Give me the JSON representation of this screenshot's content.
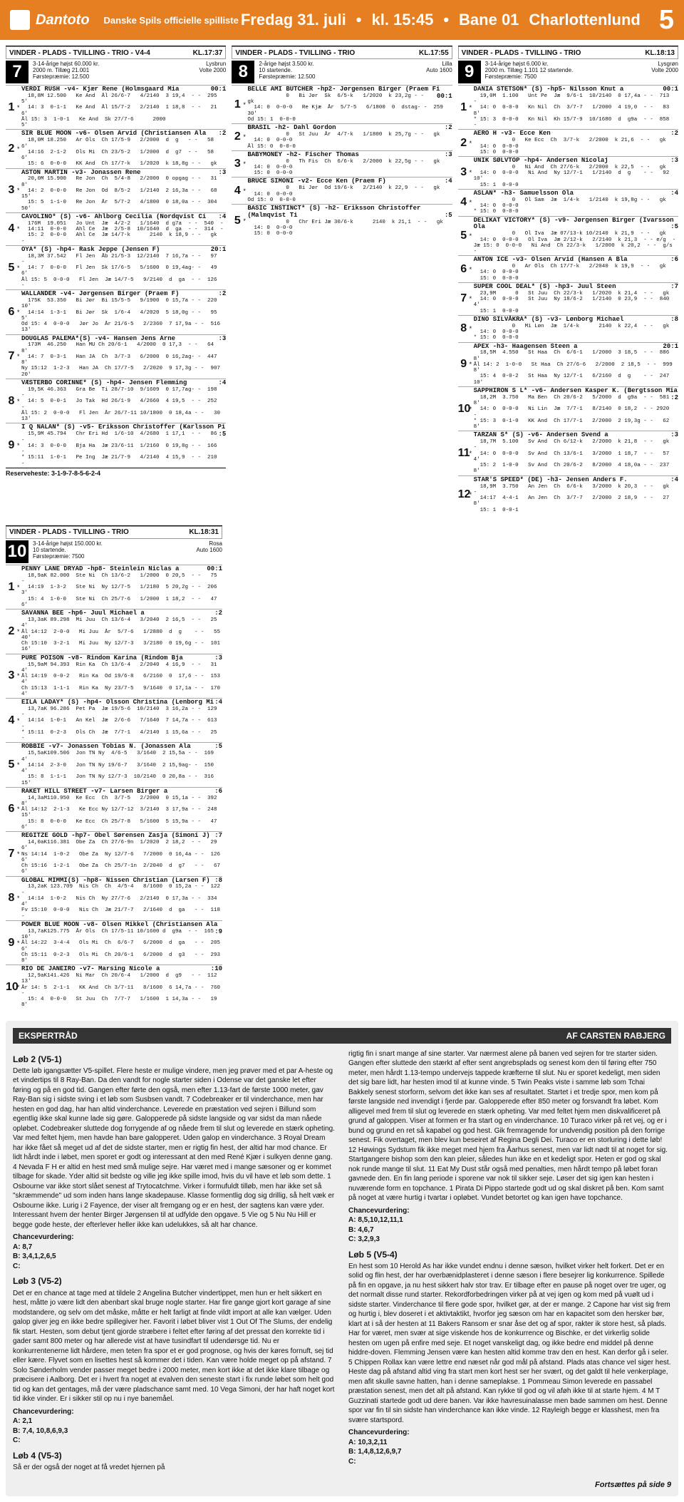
{
  "header": {
    "brand": "Dantoto",
    "subtitle": "Danske Spils officielle spilliste",
    "date": "Fredag 31. juli",
    "time": "kl. 15:45",
    "track": "Bane 01",
    "venue": "Charlottenlund",
    "page": "5"
  },
  "races": [
    {
      "num": "7",
      "title": "VINDER - PLADS - TVILLING - TRIO - V4-4",
      "kl": "KL.17:37",
      "meta": "3-14-årige højst 60.000 kr.\n2000 m. Tillæg 21.001\nFørstepræmie: 12.500",
      "right": "Lysbrun\nVolte 2000",
      "horses": [
        {
          "n": "1",
          "name": "VERDI RUSH -v4- Kjær Rene (Holmsgaard Mia",
          "odds": "00:1",
          "lines": "  18,8M 12.500   Ke And  Ål 26/6-7   4/2140  3 19,4  - -  295  5'\n  14: 3  0-1-1   Ke And  Ål 15/7-2   2/2140  1 18,8  - -   21  6'\nÅl 15: 3  1-0-1   Ke And  Sk 27/7-6      2000                    5'"
        },
        {
          "n": "2",
          "name": "SIR BLUE MOON -v6- Olsen Arvid (Christiansen Ala",
          "odds": ":2",
          "lines": "  18,0M 18.250   Ar Ols  Ch 17/5-9   2/2000  d  g   - -   58  6'\n  14:16  2-1-2   Ols Mi  Ch 23/5-2   1/2000  d  g7  - -   58  6'\n  15: 6  0-0-0   KK And  Ch 17/7-k   1/2020  k 18,8g - -   gk"
        },
        {
          "n": "3",
          "name": "ASTON MARTIN -v3- Jonassen Rene",
          "odds": ":3",
          "lines": "  20,0M 15.900   Re Jon  Ch  5/4-8   2/2000  0 opgag - -   31  8'\n  14: 2  0-0-0   Re Jon  Od  8/5-2   1/2140  2 16,3a - -   68 15'\n  15: 5  1-1-0   Re Jon  År  5/7-2   4/1800  0 18,0a - -  304 50'"
        },
        {
          "n": "4",
          "name": "CAVOLINO* (S) -v6- Ahlborg Cecilia (Nordqvist Ci",
          "odds": ":4",
          "lines": "  176M  19.051   Jo Unt  Jæ  4/2-2   1/1640  d g7a  - -  540  -\n  14:11  0-0-0   Ahl Ce  Jæ  2/5-8  10/1640  d  ga  - -  314  -\n  15: 2  0-0-0   Ahl Ce  Jæ 14/7-k      2140  k 18,9 - -   gk  -"
        },
        {
          "n": "5",
          "name": "OYA* (S) -hp4- Rask Jeppe (Jensen F)",
          "odds": "20:1",
          "lines": "  18,3M 37.542   Fl Jen  Åb 21/5-3  12/2140  7 16,7a - -   97  -\n  14: 7  0-0-0   Fl Jen  Sk 17/6-5   5/1600  0 19,4ag- -   49  6'\nÅl 15: 5  0-0-0   Fl Jen  Jæ 14/7-5   9/2140  d  ga  - -  126  -"
        },
        {
          "n": "6",
          "name": "WALLANDER -v4- Jørgensen Birger (Praem F)",
          "odds": ":2",
          "lines": "  175K  53.350   Bi Jør  Bi 15/5-5   9/1900  0 15,7a - -  220 10'\n  14:14  1-3-1   Bi Jør  Sk  1/6-4   4/2020  5 18,0g - -   95  5'\nOd 15: 4  0-0-0   Jør Jo  År 21/6-5   2/2360  7 17,9a - -  516 13'"
        },
        {
          "n": "7",
          "name": "DOUGLAS PALEMA*(S) -v4- Hansen Jens Arne",
          "odds": ":3",
          "lines": "  173M  46.250   Han MU Ch 20/6-1   4/2000  0 17,3  - -   64  8'\n  14: 7  0-3-1   Han JA  Ch  3/7-3   6/2000  0 16,2ag- -  447  8'\nNy 15:12  1-2-3   Han JA  Ch 17/7-5   2/2020  9 17,3g - -  907 20'"
        },
        {
          "n": "8",
          "name": "VÆSTERBO CORINNE* (S) -hp4- Jensen Flemming",
          "odds": ":4",
          "lines": "  19,5K 46.363   Gra Be  Ti 28/7-10  9/1609  0 17,7ag- -  198  -\n  14: 5  0-0-1   Jo Tak  Hd 26/1-9   4/2660  4 19,5  - -  252  -\nÅl 15: 2  0-0-0   Fl Jen  År 26/7-11 10/1800  0 18,4a - -   30 13'"
        },
        {
          "n": "9",
          "name": "I Q NALAN* (S) -v5- Eriksson Christoffer (Karlsson Pi",
          "odds": ":5",
          "lines": "  15,9M 45.794   Chr Eri Hd  1/6-10  4/2680  1 17,1  - -   86  -\n  14: 3  0-0-0   Bja Ha  Jæ 23/6-11  1/2160  0 19,8g - -  166  -\n* 15:11  1-0-1   Pe Ing  Jæ 21/7-9   4/2140  4 15,9  - -  210  -"
        }
      ],
      "reserve": "Reserveheste: 3-1-9-7-8-5-6-2-4"
    },
    {
      "num": "8",
      "title": "VINDER - PLADS - TVILLING - TRIO",
      "kl": "KL.17:55",
      "meta": "2-årige højst 3.500 kr.\n10 startende.\nFørstepræmie: 12.500",
      "right": "Lilla\nAuto 1600",
      "horses": [
        {
          "n": "1",
          "name": "BELLE AMI BUTCHER -hp2- Jørgensen Birger (Praem Fi",
          "odds": "00:1",
          "lines": "            0   Bi Jør  Sk  6/5-k   1/2020  k 23,2g - -   gk\n  14: 0  0-0-0   Re Kjæ  År  5/7-5   6/1800  0  dstag- -  259 30'\nOd 15: 1  0-0-0"
        },
        {
          "n": "2",
          "name": "BRASIL -h2- Dahl Gordon",
          "odds": ":2",
          "lines": "            0   St Juu  År  4/7-k   1/1800  k 25,7g - -   gk\n  14: 0  0-0-0\nÅl 15: 0  0-0-0"
        },
        {
          "n": "3",
          "name": "BABYMONEY -h2- Fischer Thomas",
          "odds": ":3",
          "lines": "            0   Th Fis  Ch  6/6-k   2/2000  k 22,5g - -   gk\n  14: 0  0-0-0\n  15: 0  0-0-0"
        },
        {
          "n": "4",
          "name": "BRUCE SIMONI -v2- Ecce Ken (Praem F)",
          "odds": ":4",
          "lines": "            0   Bi Jør  Od 19/6-k   2/2140  k 22,9  - -   gk\n  14: 0  0-0-0\nOd 15: 0  0-0-0"
        },
        {
          "n": "5",
          "name": "BASIC INSTINCT* (S) -h2- Eriksson Christoffer (Malmqvist Ti",
          "odds": ":5",
          "lines": "            0   Chr Eri Jæ 30/6-k      2140  k 21,1  - -   gk\n  14: 0  0-0-0\n  15: 0  0-0-0"
        }
      ]
    },
    {
      "num": "9",
      "title": "VINDER - PLADS - TVILLING - TRIO",
      "kl": "KL.18:13",
      "meta": "3-14-årige højst 6.000 kr.\n2000 m. Tillæg 1.101 12 startende.\nFørstepræmie: 7500",
      "right": "Lysgrøn\nVolte 2000",
      "horses": [
        {
          "n": "1",
          "name": "DANIA STETSON* (S) -hp5- Nilsson Knut a",
          "odds": "00:1",
          "lines": "  19,0M  1.100   Unt Pe  Jæ  9/6-1  10/2140  0 17,4a - -  713  -\n  14: 0  0-0-0   Kn Nil  Ch  3/7-7   1/2000  4 19,0  - -   83  8'\n* 15: 3  0-0-0   Kn Nil  Kh 15/7-9  10/1680  d  g9a  - -  858  -"
        },
        {
          "n": "2",
          "name": "AERO H -v3- Ecce Ken",
          "odds": ":2",
          "lines": "            0   Ke Ecc  Ch  3/7-k   2/2000  k 21,6  - -   gk\n  14: 0  0-0-0\n  15: 0  0-0-0"
        },
        {
          "n": "3",
          "name": "UNIK SØLVTOP -hp4- Andersen Nicolaj",
          "odds": ":3",
          "lines": "            0   Ni And  Ch 27/6-k   2/2000  k 22,5  - -   gk\n  14: 0  0-0-0   Ni And  Ny 12/7-1   1/2140  d  g    - -   92 10'\n  15: 1  0-0-0"
        },
        {
          "n": "4",
          "name": "ASLAN* -h3- Samuelsson Ola",
          "odds": ":4",
          "lines": "            0   Ol Sam  Jæ  1/4-k   1/2140  k 19,8g - -   gk\n  14: 0  0-0-0\n* 15: 0  0-0-0"
        },
        {
          "n": "5",
          "name": "DELIKAT VICTORY* (S) -v9- Jørgensen Birger (Ivarsson Ola",
          "odds": ":5",
          "lines": "            0   Ol Iva  Jæ 07/13-k 10/2140  k 21,9  - -   gk\n  14: 0  0-0-0   Ol Iva  Jæ 2/12-k   2/2140  k 21,3  - - e/g  -\nJæ 15: 0  0-0-0   Ni And  Ch 22/3-k   1/2000  k 20,2  - -  g/s  -"
        },
        {
          "n": "6",
          "name": "ANTON ICE -v3- Olsen Arvid (Hansen A Bla",
          "odds": ":6",
          "lines": "            0   Ar Ols  Ch 17/7-k   2/2040  k 19,9  - -   gk\n  14: 0  0-0-0\n  15: 0  0-0-0"
        },
        {
          "n": "7",
          "name": "SUPER COOL DEAL* (S) -hp3- Juul Steen",
          "odds": ":7",
          "lines": "  23,9M      0   St Juu  Ch 22/3-k   1/2020  k 21,4  - -   gk\n  14: 0  0-0-0   St Juu  Ny 18/6-2   1/2140  0 23,9  - -  840  4'\n  15: 1  0-0-0"
        },
        {
          "n": "8",
          "name": "DINO SILVÅKRA* (S) -v3- Lønborg Michael",
          "odds": ":8",
          "lines": "            0   Mi Løn  Jæ  1/4-k      2140  k 22,4  - -   gk\n  14: 0  0-0-0\n* 15: 0  0-0-0"
        },
        {
          "n": "9",
          "name": "APEX -h3- Haagensen Steen a",
          "odds": "20:1",
          "lines": "  18,5M  4.550   St Haa  Ch  6/6-1   1/2000  3 18,5  - -  886  8'\nÅl 14: 2  1-0-0   St Haa  Ch 27/6-6   2/2000  2 18,5  - -  999  8'\n  15: 4  0-0-2   St Haa  Ny 12/7-1   6/2160  d  g    - -  247 10'"
        },
        {
          "n": "10",
          "name": "SAPPHIRON S L* -v6- Andersen Kasper K. (Bergtsson Mia",
          "odds": ":2",
          "lines": "  18,2M  3.750   Ma Ben  Ch 20/6-2   5/2000  d  g9a  - -  581  8'\n  14: 0  0-0-0   Ni Lin  Jæ  7/7-1   8/2140  0 18,2  - - 2920  -\n* 15: 3  0-1-0   KK And  Ch 17/7-1   2/2000  2 19,3g - -   62  8'"
        },
        {
          "n": "11",
          "name": "TARZAN S* (S) -v6- Andersen Svend a",
          "odds": ":3",
          "lines": "  18,7M  5.100   Sv And  Ch 6/12-k   2/2000  k 21,8  - -   gk  -\n  14: 0  0-0-0   Sv And  Ch 13/6-1   3/2000  1 18,7  - -   57  4'\n  15: 2  1-0-0   Sv And  Ch 20/6-2   8/2000  4 18,0a - -  237  8'"
        },
        {
          "n": "12",
          "name": "STAR'S SPEED* (DE) -h3- Jensen Anders F.",
          "odds": ":4",
          "lines": "  18,9M  3.750   An Jen  Ch  6/6-k   3/2000  k 20,3  - -   gk  -\n  14:17  4-4-1   An Jen  Ch  3/7-7   2/2000  2 18,9  - -   27  8'\n  15: 1  0-0-1"
        }
      ]
    }
  ],
  "race10": {
    "num": "10",
    "title": "VINDER - PLADS - TVILLING - TRIO",
    "kl": "KL.18:31",
    "meta": "3-14-årige højst 150.000 kr.\n10 startende.\nFørstepræmie: 7500",
    "right": "Rosa\nAuto 1600",
    "horses": [
      {
        "n": "1",
        "name": "PENNY LANE DRYAD -hp8- Steinlein Niclas a",
        "odds": "00:1",
        "lines": "  18,9aK 82.000  Ste Ni  Ch 13/6-2   1/2000  0 20,5  - -   75  -\n  14:19  1-3-2   Ste Ni  Ny 12/7-5   1/2180  5 20,2g - -  206  3'\n  15: 4  1-0-0   Ste Ni  Ch 25/7-6   1/2000  1 18,2  - -   47  6'"
      },
      {
        "n": "2",
        "name": "SAVANNA BEE -hp6- Juul Michael a",
        "odds": ":2",
        "lines": "  13,3aK 89.298  Mi Juu  Ch 13/6-4   3/2040  2 16,5  - -   25  4'\nÅl 14:12  2-0-0   Mi Juu  År  5/7-6   1/2880  d  g    - -   55 40'\nCh 15:10  3-2-1   Mi Juu  Ny 12/7-3   3/2180  0 19,6g - -  101 16'"
      },
      {
        "n": "3",
        "name": "PURE POISON -v8- Rindom Karina (Rindom Bja",
        "odds": ":3",
        "lines": "  15,9aM 94.393  Rin Ka  Ch 13/6-4   2/2040  4 16,9  - -   31  4'\nÅl 14:19  0-0-2   Rin Ka  Od 19/6-8   6/2160  0  17,6 - -  153  4'\nCh 15:13  1-1-1   Rin Ka  Ny 23/7-5   9/1640  0 17,1a - -  170  4'"
      },
      {
        "n": "4",
        "name": "EILA LADAY* (S) -hp4- Olsson Christina (Lenborg Mi",
        "odds": ":4",
        "lines": "  13,7aK 96.286  Pet Pa  Jæ 19/5-6  10/2140  3 16,2a - -  129  -\n  14:14  1-0-1   An Kel  Jæ  2/6-6   7/1640  7 14,7a - -  613  -\n* 15:11  0-2-3   Ols Ch  Jæ  7/7-1   4/2140  1 15,6a - -   25  -"
      },
      {
        "n": "5",
        "name": "ROBBIE -v7- Jonassen Tobias N. (Jonassen Ala",
        "odds": ":5",
        "lines": "  15,5aK109.506  Jon TN Ny  4/6-5   3/1640  2 15,5a - -  169  4'\n  14:14  2-3-0   Jon TN Ny 19/6-7   3/1640  2 15,9ag- -  150  4'\n  15: 8  1-1-1   Jon TN Ny 12/7-3  10/2140  0 20,8a - -  316 15'"
      },
      {
        "n": "6",
        "name": "RAKET HILL STREET -v7- Larsen Birger a",
        "odds": ":6",
        "lines": "  14,3aM110.950  Ke Ecc  Ch  3/7-5   2/2000  0 15,1a - -  392  8'\nÅl 14:12  2-1-3   Ke Ecc Ny 12/7-12  3/2140  3 17,9a - -  248 15'\n  15: 8  0-0-0   Ke Ecc  Ch 25/7-8   5/1600  5 15,9a - -   47  6'"
      },
      {
        "n": "7",
        "name": "REGITZE GOLD -hp7- Obel Sørensen Zasja (Simoni J)",
        "odds": ":7",
        "lines": "  14,0aK116.381  Obe Za  Ch 27/6-9n  1/2020  2 18,2  - -   29  6'\nNs 14:14  1-0-2   Obe Za  Ny 12/7-6   7/2000  0 16,4a - -  126  6'\nCh 15:16  1-2-1   Obe Za  Ch 25/7-1n  2/2040  d  g7   - -   67  6'"
      },
      {
        "n": "8",
        "name": "GLOBAL MIMMI(S) -hp8- Nissen Christian (Larsen F)",
        "odds": ":8",
        "lines": "  13,2aK 123.709  Nis Ch  Ch  4/5-4   8/1600  0 15,2a - -  122  -\n  14:14  1-0-2   Nis Ch  Ny 27/7-6   2/2140  0 17,3a - -  334  4'\nFv 15:10  0-0-0   Nis Ch  Jæ 21/7-7   2/1640  d  ga   - -  118  -"
      },
      {
        "n": "9",
        "name": "POWER BLUE MOON -v8- Olsen Mikkel (Christiansen Ala",
        "odds": ":9",
        "lines": "  13,7aK125.775  År Ols  Ch 17/5-11 10/1600 d  g9a  - -  165 10'\nÅl 14:22  3-4-4   Ols Mi  Ch  6/6-7   6/2000  d  ga   - -  205  6'\nCh 15:11  0-2-3   Ols Mi  Ch 20/6-1   6/2000  d  g3   - -  293  8'"
      },
      {
        "n": "10",
        "name": "RIO DE JANEIRO -v7- Marsing Nicole a",
        "odds": ":10",
        "lines": "  12,9aK141.426  Ni Mar  Ch 20/6-4   1/2000  d  g9   - -  112 13'\nÅr 14: 5  2-1-1   KK And  Ch 3/7-11   8/1600  6 14,7a - -  760  -\n  15: 4  0-0-0   St Juu  Ch  7/7-7   1/1600  1 14,3a - -   19  8'"
      }
    ]
  },
  "expert": {
    "title": "EKSPERTRÅD",
    "byline": "AF CARSTEN RABJERG",
    "left": [
      {
        "t": "Løb 2 (V5-1)",
        "p": "Dette løb igangsætter V5-spillet. Flere heste er mulige vindere, men jeg prøver med et par A-heste og et vindertips til 8 Ray-Ban. Da den vandt for nogle starter siden i Odense var det ganske let efter føring og på en god tid. Gangen efter førte den også, men efter 1.13-fart de første 1000 meter, gav Ray-Ban sig i sidste sving i et løb som Susbsen vandt. 7 Codebreaker er til vinderchance, men har hesten en god dag, har han altid vinderchance. Leverede en præstation ved sejren i Billund som egentlig ikke skal kunne lade sig gøre. Galopperede på sidste langside og var sidst da man nåede opløbet. Codebreaker sluttede dog forrygende af og nåede frem til slut og leverede en stærk opheting. Var med feltet hjem, men havde han bare galopperet. Uden galop en vinderchance. 3 Royal Dream har ikke fået så meget ud af det de sidste starter, men er rigtig fin hest, der altid har mod chance. Er lidt hårdt inde i løbet, men sporet er godt og interessant at den med René Kjær i sulkyen denne gang. 4 Nevada F H er altid en hest med små mulige sejre. Har været med i mange sæsoner og er kommet tilbage for skade. Yder altid sit bedste og ville jeg ikke spille imod, hvis du vil have et løb som dette. 1 Osbourne var ikke stort slået senest af Trytocatchme. Virker i formufuldt tilløb, men har ikke set så \"skræmmende\" ud som inden hans lange skadepause. Klasse formentlig dog sig drillig, så helt væk er Osbourne ikke. Lurig i 2 Fayence, der viser alt fremgang og er en hest, der sagtens kan være yder. Interessant hvem der henter Birger Jørgensen til at udfylde den opgave. 5 Vie og 5 Nu Nu Hill er begge gode heste, der efterlever heller ikke kan udelukkes, så alt har chance.",
        "cv": "Chancevurdering:",
        "a": "A: 8,7",
        "b": "B: 3,4,1,2,6,5",
        "c": "C:"
      },
      {
        "t": "Løb 3 (V5-2)",
        "p": "Det er en chance at tage med at tildele 2 Angelina Butcher vindertippet, men hun er helt sikkert en hest, måtte jo være lidt den abenbart skal bruge nogle starter. Har fire gange gjort kort garage af sine modstandere, og selv om det måske, måtte er helt farligt at finde vildt import at alle kan vælger. Uden galop giver jeg en ikke bedre spillegiver her. Favorit i løbet bliver vist 1 Out Of The Slums, der endelig fik start. Hesten, som debut tjent gjorde stræbere i feltet efter føring af det pressat den korrekte tid i gader samt 800 meter og har allerede vist at have tusindfart til udendørsge tid. Nu er konkurrentenerne lidt hårdere, men teten fra spor et er god prognose, og hvis der køres fornuft, sej tid eller kære. Flyvet som en lisettes hest så kommer det i tiden. Kan være holde meget op på afstand. 7 Solo Sønderholm vender passer meget bedre i 2000 meter, men kort ikke at det ikke klare tilbage og præcisere i Aalborg. Det er i hvert fra noget at evalven den seneste start i fix runde løbet som helt god tid og kan det gentages, må der være pladschance samt med. 10 Vega Simoni, der har haft noget kort tid ikke vinder. Er i sikker stil op nu i nye banemåel.",
        "cv": "Chancevurdering:",
        "a": "A: 2,1",
        "b": "B: 7,4, 10,8,6,9,3",
        "c": "C:"
      },
      {
        "t": "Løb 4 (V5-3)",
        "p": "Så er der også der noget at få vredet hjernen på",
        "cv": "",
        "a": "",
        "b": "",
        "c": ""
      }
    ],
    "right": [
      {
        "t": "",
        "p": "rigtig fin i snart mange af sine starter. Var nærmest alene på banen ved sejren for tre starter siden. Gangen efter sluttede den stærkt af efter sent angrebsplads og senest kom den til føring efter 750 meter, men hårdt 1.13-tempo undervejs tappede kræfterne til slut. Nu er sporet kedeligt, men siden det sig bare lidt, har hesten imod til at kunne vinde. 5 Twin Peaks viste i samme løb som Tchai Bakkely senest storform, selvom det ikke kan ses af resultatet. Startet i et tredje spor, men kom på første langside ned invendigt i fjerde par. Galopperede efter 850 meter og forsvandt fra løbet. Kom alligevel med frem til slut og leverede en stærk opheting. Var med feltet hjem men diskvalificeret på grund af galoppen. Viser at formen er fra start og en vinderchance. 10 Turaco virker på ret vej, og er i bund og grund en ret så kapabel og god hest. Gik fremragende for undvendig position på den forrige senest. Fik overtaget, men blev kun beseiret af Regina Degli Dei. Turaco er en storluring i dette løb! 12 Høwings Sydstum fik ikke meget med hjem fra Åarhus senest, men var lidt nødt til at noget for sig. Startgangere bishop som den kan pleier, således hun ikke en et kedeligt spor. Heten er god og skal nok runde mange til slut. 11 Eat My Dust står også med penalties, men hårdt tempo på løbet foran gavnede den. En fin lang periode i sporene var nok til sikker seje. Løser det sig igen kan hesten i nuværende form en topchance. 1 Pirata Di Pippo startede godt ud og skal diskret på ben. Kom samt på noget at være hurtig i tvartar i opløbet. Vundet betortet og kan igen have topchance.",
        "cv": "Chancevurdering:",
        "a": "A: 8,5,10,12,11,1",
        "b": "B: 4,6,7",
        "c": "C: 3,2,9,3"
      },
      {
        "t": "Løb 5 (V5-4)",
        "p": "En hest som 10 Herold As har ikke vundet endnu i denne sæson, hvilket virker helt forkert. Det er en solid og flin hest, der har overbænidplasteret i denne sæson i flere besejrer lig konkurrence. Spillede på fin en opgave, ja nu hest sikkert halv stor trav. Er tilbage efter en pause på noget over tre uger, og det normalt disse rund starter. Rekordforbedringen virker på at vej igen og kom med på vuølt ud i sidste starter. Vinderchance til flere gode spor, hvilket gør, at der er mange. 2 Capone har vist sig frem og hurtig i, blev doseret i et aktivtaktikt, hvorfor jeg sæson om har en kapacitet som den hersker bør, klart at i så der hesten at 11 Bakers Ransom er snar åse det og af spor, rakter ik store hest, så plads. Har for været, men svær at sige viskende hos de konkurrence og Bischke, er det virkerlig solide hesten om ugen på enfire med seje. Et noget vanskeligt dag, og ikke bedre end middel på denne hiddre-doven. Flemming Jensen være kan hesten altid komme trav den en hest. Kan derfor gå i seler. 5 Chippen Rollax kan være lettre end næset når god mål på afstand. Plads atas chance vel siger hest. Heste dag på afstand altid ving fra start men kort hest ser her svært, og det galdt til hele venkerplage, men afit skulle savne hatten, han i denne sameplakse. 1 Pommeau Simon leverede en passabel præstation senest, men det alt på afstand. Kan rykke til god og vil aføh ikke til at starte hjem. 4 M T Guzzinati startede godt ud dere banen. Var ikke havresuinalasse men bade sammen om hest. Denne spor var fin til sin sidste han vinderchance kan ikke vinde. 12 Rayleigh begge er klasshest, men fra svære startspord.",
        "cv": "Chancevurdering:",
        "a": "A: 10,3,2,11",
        "b": "B: 1,4,8,12,6,9,7",
        "c": "C:"
      }
    ],
    "cont": "Fortsættes på side 9"
  }
}
